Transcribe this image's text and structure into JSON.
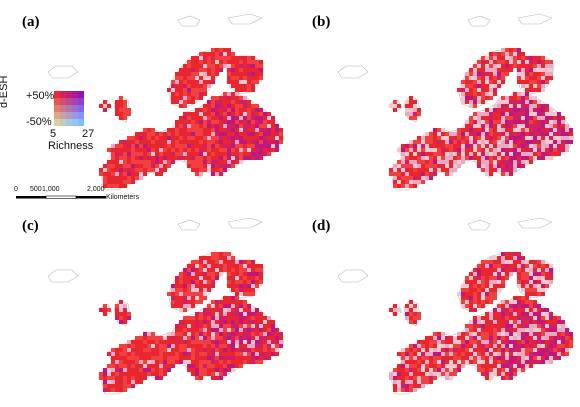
{
  "panels": [
    {
      "label": "(a)",
      "variant": "a"
    },
    {
      "label": "(b)",
      "variant": "b"
    },
    {
      "label": "(c)",
      "variant": "c"
    },
    {
      "label": "(d)",
      "variant": "d"
    }
  ],
  "legend": {
    "y_title": "d-ESH",
    "y_top": "+50%",
    "y_bottom": "-50%",
    "x_min": "5",
    "x_max": "27",
    "x_title": "Richness"
  },
  "scalebar": {
    "ticks": [
      "0",
      "500",
      "1,000",
      "2,000"
    ],
    "unit": "Kilometers"
  },
  "colors": {
    "high_red": "#e8262f",
    "purple": "#b4127a",
    "pale": "#f3c7cf",
    "land_outline": "#9a9a9a"
  }
}
